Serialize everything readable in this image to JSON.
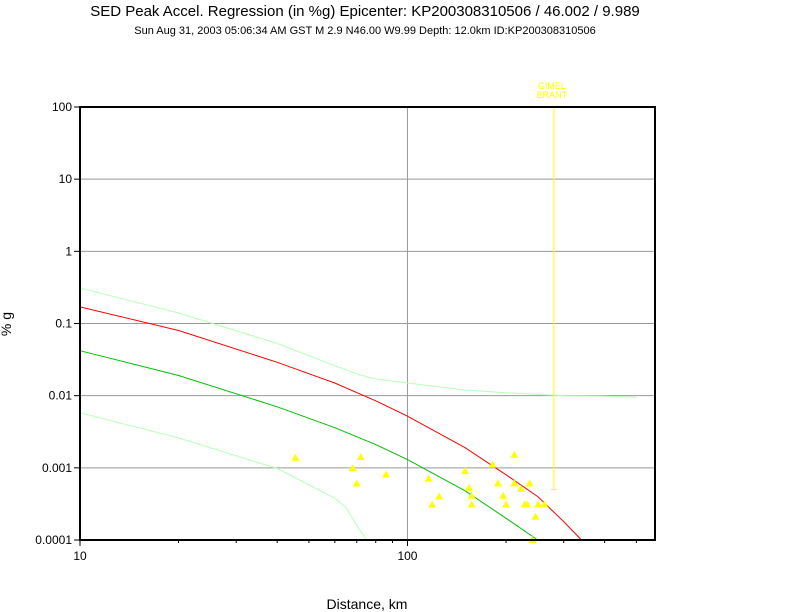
{
  "chart_data": {
    "type": "scatter",
    "title": "SED Peak Accel. Regression (in %g) Epicenter: KP200308310506 / 46.002 / 9.989",
    "subtitle": "Sun Aug 31, 2003 05:06:34 AM GST   M 2.9    N46.00 W9.99   Depth: 12.0km   ID:KP200308310506",
    "xlabel": "Distance, km",
    "ylabel": "% g",
    "x_scale": "log",
    "y_scale": "log",
    "xlim": [
      10,
      570
    ],
    "ylim": [
      0.0001,
      100
    ],
    "grid": true,
    "x_ticks": [
      {
        "value": 10,
        "label": "10"
      },
      {
        "value": 100,
        "label": "100"
      }
    ],
    "y_ticks": [
      {
        "value": 100,
        "label": "100"
      },
      {
        "value": 10,
        "label": "10"
      },
      {
        "value": 1,
        "label": "1"
      },
      {
        "value": 0.1,
        "label": "0.1"
      },
      {
        "value": 0.01,
        "label": "0.01"
      },
      {
        "value": 0.001,
        "label": "0.001"
      },
      {
        "value": 0.0001,
        "label": "0.0001"
      }
    ],
    "series": [
      {
        "kind": "points",
        "color": "#ffff00",
        "marker": "triangle",
        "x": [
          45.5,
          68,
          72,
          70,
          86,
          116,
          119,
          125,
          150,
          154,
          157,
          157,
          182,
          189,
          196,
          200,
          212,
          212,
          222,
          228,
          232,
          236,
          241,
          246,
          251,
          262
        ],
        "y": [
          0.00138,
          0.00099,
          0.00141,
          0.00061,
          0.00081,
          0.00071,
          0.00031,
          0.0004,
          0.0009,
          0.00053,
          0.00041,
          0.00031,
          0.00111,
          0.00061,
          0.00041,
          0.00031,
          0.00152,
          0.00061,
          0.00051,
          0.00031,
          0.00031,
          0.00061,
          0.0001,
          0.00021,
          0.00031,
          0.00031
        ]
      },
      {
        "kind": "line",
        "color": "#ff0000",
        "x": [
          10,
          20,
          40,
          60,
          80,
          100,
          150,
          200,
          250,
          300,
          340
        ],
        "y": [
          0.17,
          0.08,
          0.029,
          0.015,
          0.0085,
          0.0052,
          0.0019,
          0.0008,
          0.0004,
          0.00018,
          0.0001
        ]
      },
      {
        "kind": "line",
        "color": "#00c000",
        "x": [
          10,
          20,
          40,
          60,
          80,
          100,
          150,
          200,
          250
        ],
        "y": [
          0.042,
          0.019,
          0.007,
          0.0036,
          0.0021,
          0.0013,
          0.00048,
          0.0002,
          0.0001
        ]
      },
      {
        "kind": "line",
        "color": "#b8ffb8",
        "x": [
          10,
          20,
          40,
          60,
          70,
          80,
          100,
          150,
          200,
          300,
          400,
          500
        ],
        "y": [
          0.31,
          0.14,
          0.053,
          0.026,
          0.02,
          0.017,
          0.015,
          0.012,
          0.011,
          0.01,
          0.0098,
          0.0095
        ]
      },
      {
        "kind": "line",
        "color": "#b8ffb8",
        "x": [
          10,
          20,
          40,
          60,
          65,
          70,
          75
        ],
        "y": [
          0.0058,
          0.0026,
          0.00098,
          0.00038,
          0.00028,
          0.00016,
          0.0001
        ]
      }
    ],
    "annotations": [
      {
        "text": "GIMEL",
        "x": 280
      },
      {
        "text": "BRANT",
        "x": 280
      }
    ],
    "annotation_line": {
      "x": 280,
      "y_from": 100,
      "y_to": 0.0005,
      "color": "#ffff00"
    }
  }
}
